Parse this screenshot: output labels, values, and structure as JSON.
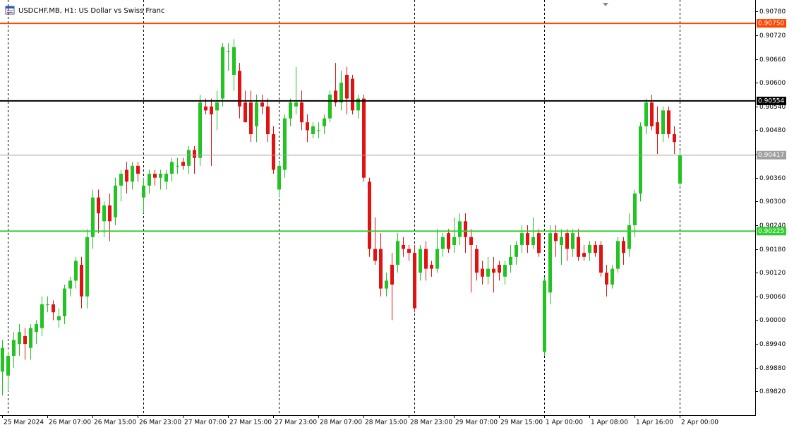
{
  "chart_data": {
    "type": "candlestick",
    "title": "USDCHF.MB, H1:  US Dollar vs Swiss Franc",
    "bull_color": "#22c322",
    "bear_color": "#e01212",
    "ylim": [
      0.8976,
      0.90809
    ],
    "yticks": [
      {
        "value": 0.8982,
        "label": "0.89820"
      },
      {
        "value": 0.8988,
        "label": "0.89880"
      },
      {
        "value": 0.8994,
        "label": "0.89940"
      },
      {
        "value": 0.9,
        "label": "0.90000"
      },
      {
        "value": 0.9006,
        "label": "0.90060"
      },
      {
        "value": 0.9012,
        "label": "0.90120"
      },
      {
        "value": 0.9018,
        "label": "0.90180"
      },
      {
        "value": 0.9024,
        "label": "0.90240"
      },
      {
        "value": 0.903,
        "label": "0.90300"
      },
      {
        "value": 0.9036,
        "label": "0.90360"
      },
      {
        "value": 0.9042,
        "label": "0.90420"
      },
      {
        "value": 0.9048,
        "label": "0.90480"
      },
      {
        "value": 0.9054,
        "label": "0.90540"
      },
      {
        "value": 0.906,
        "label": "0.90600"
      },
      {
        "value": 0.9066,
        "label": "0.90660"
      },
      {
        "value": 0.9072,
        "label": "0.90720"
      },
      {
        "value": 0.9078,
        "label": "0.90780"
      }
    ],
    "levels": [
      {
        "value": 0.9075,
        "label": "0.90750",
        "color": "#ff4500"
      },
      {
        "value": 0.90554,
        "label": "0.90554",
        "color": "#000000"
      },
      {
        "value": 0.90417,
        "label": "0.90417",
        "color": "#a0a0a0"
      },
      {
        "value": 0.90225,
        "label": "0.90225",
        "color": "#32cd32"
      }
    ],
    "categories": [
      "25 Mar 2024",
      null,
      null,
      null,
      null,
      null,
      null,
      null,
      "26 Mar 07:00",
      null,
      null,
      null,
      null,
      null,
      null,
      null,
      "26 Mar 15:00",
      null,
      null,
      null,
      null,
      null,
      null,
      null,
      "26 Mar 23:00",
      null,
      null,
      null,
      null,
      null,
      null,
      null,
      "27 Mar 07:00",
      null,
      null,
      null,
      null,
      null,
      null,
      null,
      "27 Mar 15:00",
      null,
      null,
      null,
      null,
      null,
      null,
      null,
      "27 Mar 23:00",
      null,
      null,
      null,
      null,
      null,
      null,
      null,
      "28 Mar 07:00",
      null,
      null,
      null,
      null,
      null,
      null,
      null,
      "28 Mar 15:00",
      null,
      null,
      null,
      null,
      null,
      null,
      null,
      "28 Mar 23:00",
      null,
      null,
      null,
      null,
      null,
      null,
      null,
      "29 Mar 07:00",
      null,
      null,
      null,
      null,
      null,
      null,
      null,
      "29 Mar 15:00",
      null,
      null,
      null,
      null,
      null,
      null,
      null,
      "1 Apr 00:00",
      null,
      null,
      null,
      null,
      null,
      null,
      null,
      "1 Apr 08:00",
      null,
      null,
      null,
      null,
      null,
      null,
      null,
      "1 Apr 16:00",
      null,
      null,
      null,
      null,
      null,
      null,
      null,
      "2 Apr 00:00"
    ],
    "open": [
      0.8987,
      0.8986,
      0.8991,
      0.8994,
      0.8996,
      0.8993,
      0.8997,
      0.8998,
      0.9004,
      0.9004,
      0.9,
      0.9001,
      0.9008,
      0.901,
      0.9014,
      0.9006,
      0.9021,
      0.9031,
      0.9025,
      0.9029,
      0.9026,
      0.9034,
      0.9038,
      0.9035,
      0.9039,
      0.9031,
      0.9034,
      0.9037,
      0.9036,
      0.9035,
      0.9037,
      0.9039,
      0.904,
      0.9039,
      0.9043,
      0.9041,
      0.9054,
      0.9054,
      0.9053,
      0.9056,
      0.9068,
      0.9062,
      0.9063,
      0.9055,
      0.9055,
      0.9049,
      0.9055,
      0.9054,
      0.9047,
      0.9033,
      0.9038,
      0.9051,
      0.9054,
      0.9055,
      0.905,
      0.9047,
      0.9048,
      0.9049,
      0.9051,
      0.9058,
      0.9055,
      0.9062,
      0.9061,
      0.9053,
      0.9056,
      0.9035,
      0.9018,
      0.9018,
      0.9008,
      0.9014,
      0.9014,
      0.9019,
      0.9018,
      0.9017,
      0.9012,
      0.9018,
      0.9014,
      0.9013,
      0.9018,
      0.9022,
      0.9019,
      0.9021,
      0.9025,
      0.9021,
      0.9018,
      0.9013,
      0.9011,
      0.9013,
      0.9014,
      0.9011,
      0.9014,
      0.9016,
      0.9019,
      0.9022,
      0.9019,
      0.9022,
      0.8992,
      0.9007,
      0.9022,
      0.9019,
      0.9022,
      0.9018,
      0.9021,
      0.9017,
      0.9017,
      0.9019,
      0.9019,
      0.9012,
      0.9009,
      0.9013,
      0.902,
      0.9018,
      0.9024,
      0.9032,
      0.9049,
      0.9055,
      0.905,
      0.9047,
      0.9053,
      0.9047,
      0.90345
    ],
    "high": [
      0.8995,
      0.8992,
      0.8997,
      0.8999,
      0.8998,
      0.8999,
      0.9,
      0.9006,
      0.9006,
      0.9005,
      0.9003,
      0.9009,
      0.9011,
      0.9016,
      0.9016,
      0.9023,
      0.9033,
      0.9033,
      0.903,
      0.9032,
      0.9036,
      0.9038,
      0.904,
      0.904,
      0.904,
      0.9036,
      0.9038,
      0.9038,
      0.9038,
      0.9038,
      0.9041,
      0.9041,
      0.9041,
      0.9044,
      0.9044,
      0.9057,
      0.9056,
      0.9056,
      0.9058,
      0.907,
      0.907,
      0.9071,
      0.9065,
      0.9058,
      0.9058,
      0.9057,
      0.9057,
      0.9056,
      0.9049,
      0.904,
      0.9052,
      0.9056,
      0.9064,
      0.9058,
      0.9052,
      0.905,
      0.905,
      0.9052,
      0.9058,
      0.9065,
      0.9063,
      0.9064,
      0.9062,
      0.9057,
      0.9057,
      0.9036,
      0.9026,
      0.9022,
      0.9012,
      0.9017,
      0.9022,
      0.9021,
      0.9019,
      0.9019,
      0.9019,
      0.902,
      0.9015,
      0.9023,
      0.9022,
      0.9023,
      0.9026,
      0.9027,
      0.9027,
      0.9023,
      0.9019,
      0.9015,
      0.9016,
      0.9016,
      0.9015,
      0.9015,
      0.9019,
      0.902,
      0.9024,
      0.9024,
      0.9026,
      0.9023,
      0.9011,
      0.9024,
      0.9024,
      0.9023,
      0.9023,
      0.9023,
      0.9023,
      0.9019,
      0.902,
      0.902,
      0.902,
      0.9014,
      0.9014,
      0.9021,
      0.9021,
      0.9027,
      0.9033,
      0.905,
      0.9056,
      0.9057,
      0.9054,
      0.9054,
      0.9054,
      0.9049,
      0.9043
    ],
    "low": [
      0.8981,
      0.8982,
      0.8988,
      0.8991,
      0.899,
      0.899,
      0.8994,
      0.8996,
      0.9002,
      0.9,
      0.8998,
      0.8999,
      0.9006,
      0.9008,
      0.9003,
      0.9003,
      0.9018,
      0.9022,
      0.9021,
      0.902,
      0.9024,
      0.903,
      0.9032,
      0.9033,
      0.9035,
      0.9027,
      0.9032,
      0.9034,
      0.9033,
      0.9033,
      0.9035,
      0.9037,
      0.9038,
      0.9037,
      0.9037,
      0.9039,
      0.9052,
      0.9039,
      0.9048,
      0.9054,
      0.9063,
      0.9058,
      0.9051,
      0.905,
      0.9045,
      0.9045,
      0.9052,
      0.9045,
      0.9037,
      0.9031,
      0.9036,
      0.9049,
      0.9052,
      0.9048,
      0.9045,
      0.9046,
      0.9046,
      0.9047,
      0.905,
      0.9054,
      0.9053,
      0.9052,
      0.9052,
      0.9051,
      0.9035,
      0.9016,
      0.9014,
      0.9006,
      0.9006,
      0.9,
      0.9012,
      0.9016,
      0.9015,
      0.9002,
      0.901,
      0.901,
      0.9011,
      0.9012,
      0.9016,
      0.9017,
      0.9017,
      0.9019,
      0.9017,
      0.9007,
      0.901,
      0.9009,
      0.9009,
      0.9007,
      0.901,
      0.9009,
      0.9012,
      0.9014,
      0.9017,
      0.9017,
      0.9018,
      0.9016,
      0.8991,
      0.9004,
      0.9016,
      0.9014,
      0.9015,
      0.9016,
      0.9015,
      0.9015,
      0.9015,
      0.9016,
      0.9011,
      0.9006,
      0.9008,
      0.9012,
      0.9014,
      0.9016,
      0.9021,
      0.903,
      0.9047,
      0.9048,
      0.9042,
      0.9045,
      0.9046,
      0.9042,
      0.9034
    ],
    "close": [
      0.8993,
      0.8991,
      0.8995,
      0.8997,
      0.8994,
      0.8998,
      0.8999,
      0.9004,
      0.9004,
      0.9002,
      0.9001,
      0.9008,
      0.901,
      0.9015,
      0.9006,
      0.9021,
      0.9031,
      0.9027,
      0.9029,
      0.9025,
      0.9034,
      0.9037,
      0.9035,
      0.9039,
      0.9037,
      0.9034,
      0.9037,
      0.9036,
      0.9037,
      0.9037,
      0.904,
      0.9039,
      0.9039,
      0.9043,
      0.9041,
      0.9055,
      0.9053,
      0.9052,
      0.9055,
      0.9069,
      0.9068,
      0.9069,
      0.9054,
      0.905,
      0.9047,
      0.9055,
      0.9054,
      0.9047,
      0.9038,
      0.9039,
      0.9051,
      0.9055,
      0.9055,
      0.905,
      0.9048,
      0.9049,
      0.9048,
      0.9051,
      0.9057,
      0.9055,
      0.906,
      0.9056,
      0.9053,
      0.9056,
      0.9036,
      0.9018,
      0.9015,
      0.9008,
      0.901,
      0.9009,
      0.902,
      0.9018,
      0.9017,
      0.9003,
      0.9018,
      0.9013,
      0.9013,
      0.9018,
      0.9021,
      0.9018,
      0.9021,
      0.9025,
      0.9021,
      0.9019,
      0.9012,
      0.9011,
      0.9013,
      0.9012,
      0.9012,
      0.9014,
      0.9016,
      0.9019,
      0.9022,
      0.9019,
      0.9021,
      0.9017,
      0.901,
      0.9022,
      0.902,
      0.9021,
      0.9018,
      0.9022,
      0.9016,
      0.9016,
      0.9019,
      0.9017,
      0.9012,
      0.9009,
      0.9013,
      0.902,
      0.9017,
      0.9024,
      0.9032,
      0.9049,
      0.9055,
      0.9049,
      0.9047,
      0.9053,
      0.9047,
      0.9045,
      0.90417
    ]
  }
}
